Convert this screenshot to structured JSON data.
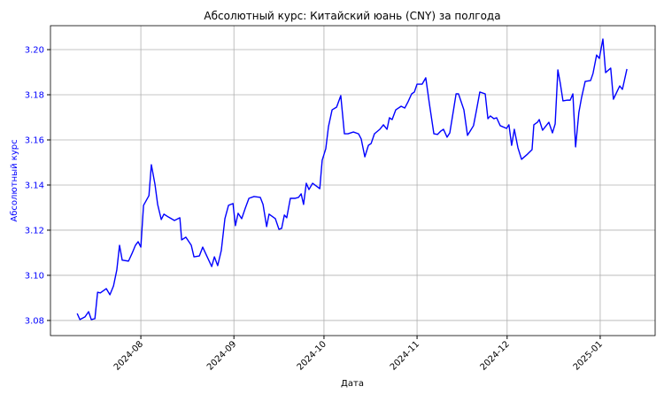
{
  "chart_data": {
    "type": "line",
    "title": "Абсолютный курс: Китайский юань (CNY) за полгода",
    "x_label": "Дата",
    "y_label": "Абсолютный курс",
    "color": "#0000ff",
    "grid": true,
    "x": [
      9.8,
      10.7,
      12.4,
      13.6,
      14.5,
      15.7,
      16.6,
      17.5,
      19.5,
      20.7,
      21.9,
      23.0,
      23.9,
      24.8,
      26.9,
      28.1,
      29.2,
      30.1,
      31.0,
      31.9,
      33.7,
      34.5,
      35.7,
      36.6,
      37.8,
      38.7,
      40.1,
      42.2,
      44.0,
      44.6,
      46.0,
      47.8,
      48.7,
      50.5,
      51.6,
      53.1,
      54.6,
      55.5,
      56.6,
      57.8,
      59.0,
      60.2,
      61.7,
      62.5,
      63.4,
      64.6,
      65.8,
      67.0,
      68.7,
      70.8,
      71.7,
      72.9,
      73.7,
      75.8,
      77.0,
      77.9,
      78.8,
      79.6,
      80.8,
      82.3,
      83.5,
      84.4,
      85.2,
      86.1,
      87.0,
      88.2,
      90.6,
      91.4,
      92.6,
      93.5,
      94.7,
      96.2,
      97.6,
      98.8,
      100.0,
      101.8,
      103.5,
      104.4,
      105.6,
      106.8,
      107.7,
      108.8,
      110.6,
      111.8,
      113.0,
      113.8,
      114.7,
      115.9,
      117.7,
      118.9,
      120.0,
      121.2,
      122.1,
      123.0,
      124.7,
      125.9,
      127.1,
      128.6,
      129.8,
      130.9,
      131.8,
      133.0,
      133.9,
      135.1,
      136.0,
      136.8,
      138.6,
      139.8,
      140.7,
      141.8,
      142.7,
      143.9,
      145.7,
      146.6,
      147.4,
      148.6,
      149.5,
      150.7,
      152.8,
      153.6,
      154.5,
      155.4,
      156.6,
      157.8,
      159.8,
      161.3,
      161.9,
      163.1,
      163.7,
      164.8,
      166.0,
      166.9,
      168.1,
      169.0,
      169.9,
      170.7,
      171.6,
      173.1,
      174.0,
      174.9,
      175.8,
      176.9,
      177.8,
      179.0,
      180.8,
      181.6,
      182.8,
      183.7,
      184.9,
      185.8,
      187.5,
      188.4,
      190.5,
      191.4,
      192.9
    ],
    "values": [
      3.0831,
      3.0804,
      3.0816,
      3.0839,
      3.0804,
      3.0808,
      3.0925,
      3.0922,
      3.0941,
      3.0914,
      3.0953,
      3.1024,
      3.1133,
      3.1067,
      3.1063,
      3.1098,
      3.1133,
      3.1149,
      3.1125,
      3.131,
      3.1353,
      3.149,
      3.1404,
      3.1314,
      3.1247,
      3.1271,
      3.1259,
      3.1243,
      3.1255,
      3.1157,
      3.1169,
      3.1133,
      3.1082,
      3.1086,
      3.1125,
      3.1082,
      3.1039,
      3.1082,
      3.1043,
      3.111,
      3.1251,
      3.131,
      3.1318,
      3.122,
      3.1275,
      3.1251,
      3.1298,
      3.1341,
      3.1349,
      3.1345,
      3.1314,
      3.1216,
      3.1271,
      3.1251,
      3.1204,
      3.1208,
      3.1267,
      3.1255,
      3.1341,
      3.1341,
      3.1345,
      3.1361,
      3.1314,
      3.1408,
      3.138,
      3.1408,
      3.1384,
      3.151,
      3.1561,
      3.1659,
      3.1733,
      3.1745,
      3.1796,
      3.1627,
      3.1627,
      3.1635,
      3.1627,
      3.1604,
      3.1525,
      3.1576,
      3.1584,
      3.1627,
      3.1647,
      3.1667,
      3.1647,
      3.1698,
      3.169,
      3.1733,
      3.1749,
      3.1741,
      3.1769,
      3.1804,
      3.1812,
      3.1847,
      3.1847,
      3.1875,
      3.1761,
      3.1627,
      3.1624,
      3.1639,
      3.1647,
      3.1612,
      3.1631,
      3.1729,
      3.1804,
      3.1804,
      3.1733,
      3.162,
      3.1639,
      3.1663,
      3.1725,
      3.1812,
      3.1804,
      3.1694,
      3.1706,
      3.1694,
      3.1698,
      3.1663,
      3.1651,
      3.1667,
      3.1576,
      3.1647,
      3.1565,
      3.1514,
      3.1537,
      3.1557,
      3.1667,
      3.1678,
      3.169,
      3.1643,
      3.1663,
      3.1678,
      3.1631,
      3.1671,
      3.191,
      3.1851,
      3.1773,
      3.1776,
      3.1776,
      3.1804,
      3.1569,
      3.1722,
      3.1788,
      3.1859,
      3.1863,
      3.1894,
      3.1976,
      3.1961,
      3.2047,
      3.1898,
      3.1918,
      3.178,
      3.1839,
      3.1824,
      3.1914
    ],
    "xlim": [
      0.9,
      202.3
    ],
    "xticks": [
      {
        "value": 31,
        "label": "2024-08"
      },
      {
        "value": 62,
        "label": "2024-09"
      },
      {
        "value": 92,
        "label": "2024-10"
      },
      {
        "value": 123,
        "label": "2024-11"
      },
      {
        "value": 153,
        "label": "2024-12"
      },
      {
        "value": 184,
        "label": "2025-01"
      }
    ],
    "ylim": [
      3.0733,
      3.2106
    ],
    "yticks": [
      3.08,
      {
        "value": 3.1,
        "label": "3.10"
      },
      3.12,
      3.14,
      3.16,
      3.18,
      {
        "value": 3.2,
        "label": "3.20"
      }
    ]
  }
}
